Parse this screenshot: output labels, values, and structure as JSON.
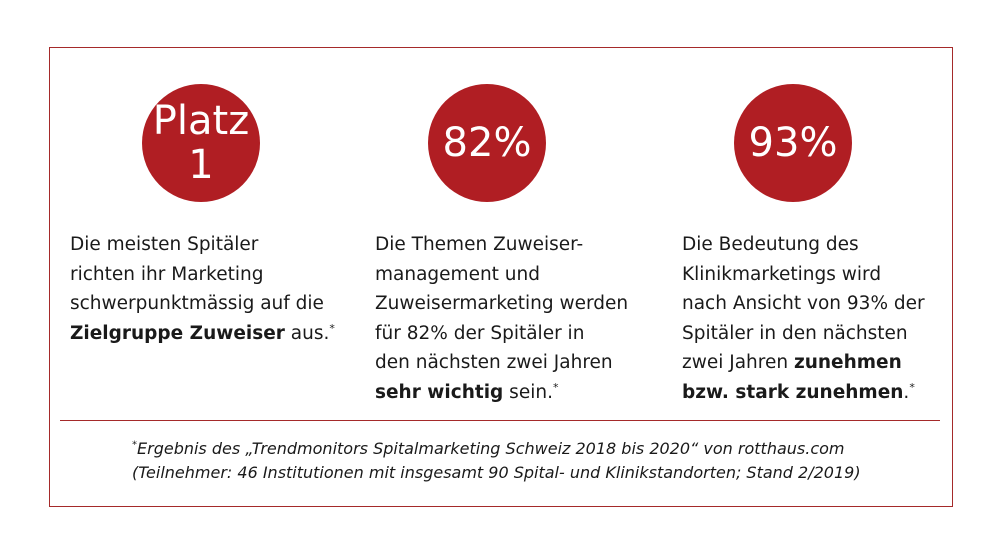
{
  "colors": {
    "accent": "#b01e23",
    "border": "#a52a2a"
  },
  "stats": [
    {
      "circle_line1": "Platz",
      "circle_line2": "1",
      "lines": [
        "Die meisten Spitäler",
        "richten ihr Marketing",
        "schwerpunktmässig auf die"
      ],
      "bold": "Zielgruppe Zuweiser",
      "after_bold": " aus.",
      "star": "*"
    },
    {
      "circle_text": "82%",
      "lines": [
        "Die Themen Zuweiser-",
        "management und",
        "Zuweisermarketing werden",
        "für 82% der Spitäler in",
        "den nächsten zwei Jahren"
      ],
      "bold": "sehr wichtig",
      "after_bold": " sein.",
      "star": "*"
    },
    {
      "circle_text": "93%",
      "lines": [
        "Die Bedeutung des",
        "Klinikmarketings wird",
        "nach Ansicht von 93% der",
        "Spitäler in den nächsten"
      ],
      "line5_prefix": "zwei Jahren ",
      "line5_bold": "zunehmen",
      "line6_bold": "bzw. stark zunehmen",
      "after_bold": ".",
      "star": "*"
    }
  ],
  "footnote": {
    "star": "*",
    "line1": "Ergebnis des „Trendmonitors Spitalmarketing Schweiz 2018 bis 2020“ von rotthaus.com",
    "line2": "(Teilnehmer: 46 Institutionen mit insgesamt 90 Spital- und Klinikstandorten; Stand 2/2019)"
  }
}
